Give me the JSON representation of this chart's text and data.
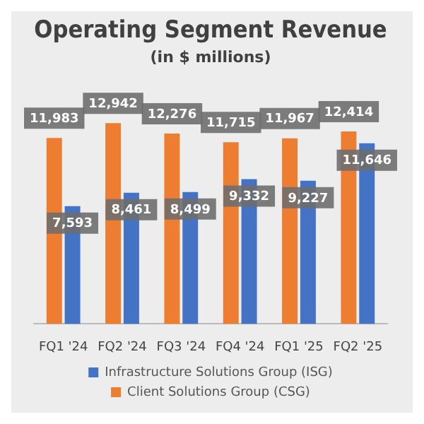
{
  "chart_data": {
    "type": "bar",
    "title": "Operating Segment Revenue",
    "subtitle": "(in $ millions)",
    "categories": [
      "FQ1 '24",
      "FQ2 '24",
      "FQ3 '24",
      "FQ4 '24",
      "FQ1 '25",
      "FQ2 '25"
    ],
    "series": [
      {
        "name": "Client Solutions Group (CSG)",
        "color": "#ed7d31",
        "values": [
          11983,
          12942,
          12276,
          11715,
          11967,
          12414
        ],
        "value_labels": [
          "11,983",
          "12,942",
          "12,276",
          "11,715",
          "11,967",
          "12,414"
        ]
      },
      {
        "name": "Infrastructure Solutions Group (ISG)",
        "color": "#4472c4",
        "values": [
          7593,
          8461,
          8499,
          9332,
          9227,
          11646
        ],
        "value_labels": [
          "7,593",
          "8,461",
          "8,499",
          "9,332",
          "9,227",
          "11,646"
        ]
      }
    ],
    "grid": false,
    "legend": "bottom"
  }
}
